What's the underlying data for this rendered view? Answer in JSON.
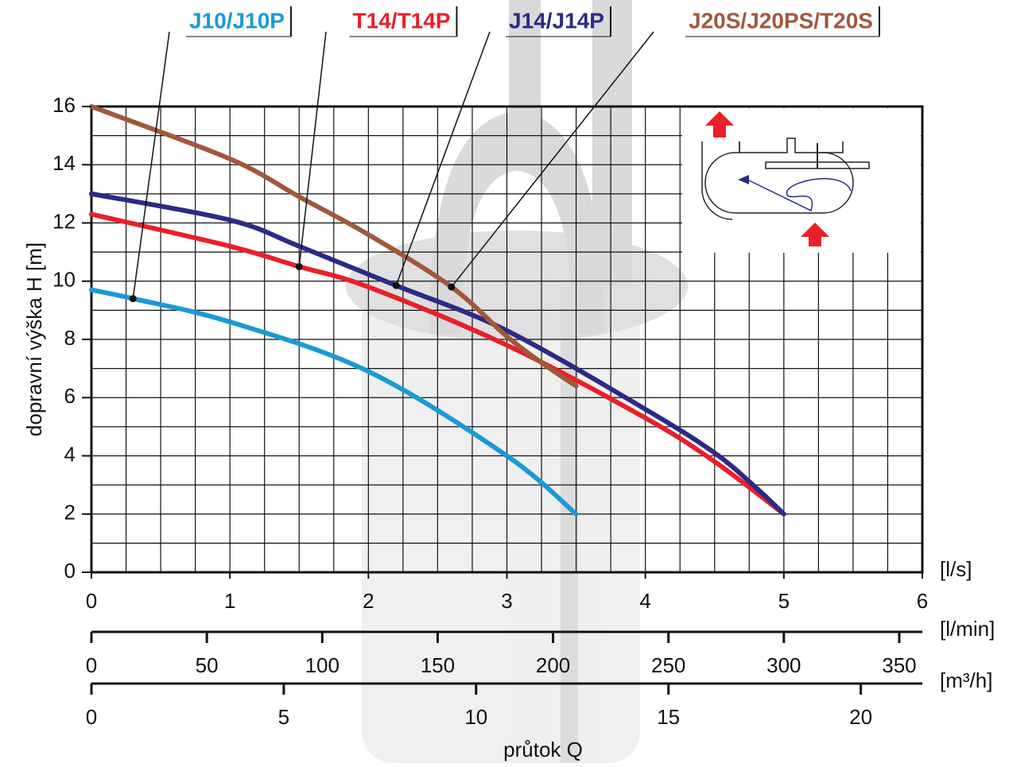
{
  "chart_data": {
    "type": "line",
    "y_label": "dopravní výška H [m]",
    "x_label": "průtok Q",
    "x_unit": "[l/s]",
    "xlim": [
      0,
      6
    ],
    "xticks": [
      0,
      1,
      2,
      3,
      4,
      5,
      6
    ],
    "ylim": [
      0,
      16
    ],
    "yticks": [
      0,
      2,
      4,
      6,
      8,
      10,
      12,
      14,
      16
    ],
    "grid": true,
    "x2_unit": "[l/min]",
    "x2lim": [
      0,
      360
    ],
    "x2ticks": [
      0,
      50,
      100,
      150,
      200,
      250,
      300,
      350
    ],
    "x3_unit": "[m³/h]",
    "x3lim": [
      0,
      21.6
    ],
    "x3ticks": [
      0,
      5,
      10,
      15,
      20
    ],
    "series": [
      {
        "name": "J10/J10P",
        "color": "#1a9ad6",
        "x": [
          0,
          0.3,
          1,
          2,
          3,
          3.5
        ],
        "values": [
          9.7,
          9.4,
          8.6,
          6.9,
          4.0,
          2.0
        ],
        "marker": {
          "x": 0.3,
          "y": 9.4
        }
      },
      {
        "name": "T14/T14P",
        "color": "#e8202a",
        "x": [
          0,
          1,
          1.5,
          2,
          3,
          4,
          4.5,
          5
        ],
        "values": [
          12.3,
          11.2,
          10.5,
          9.8,
          7.8,
          5.3,
          3.8,
          2.0
        ],
        "marker": {
          "x": 1.5,
          "y": 10.5
        }
      },
      {
        "name": "J14/J14P",
        "color": "#2b2a86",
        "x": [
          0,
          1,
          1.5,
          2.2,
          3,
          4,
          4.5,
          4.8,
          5
        ],
        "values": [
          13.0,
          12.1,
          11.2,
          9.85,
          8.3,
          5.6,
          4.1,
          2.9,
          2.0
        ],
        "marker": {
          "x": 2.2,
          "y": 9.85
        }
      },
      {
        "name": "J20S/J20PS/T20S",
        "color": "#a0583a",
        "x": [
          0,
          1,
          1.5,
          2,
          2.6,
          3,
          3.25,
          3.5
        ],
        "values": [
          16.0,
          14.2,
          12.9,
          11.6,
          9.8,
          8.1,
          7.2,
          6.4
        ],
        "marker": {
          "x": 2.6,
          "y": 9.8
        }
      }
    ]
  }
}
